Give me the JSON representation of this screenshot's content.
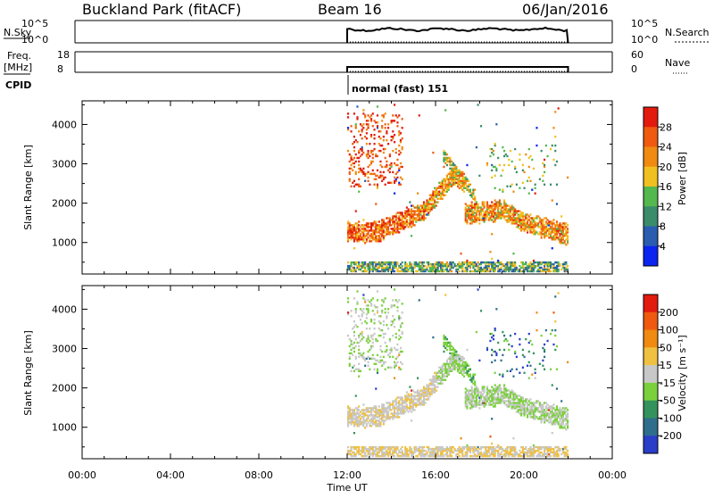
{
  "header": {
    "station": "Buckland Park (fitACF)",
    "beam": "Beam 16",
    "date": "06/Jan/2016"
  },
  "sidebar": {
    "nsky_label": "N.Sky",
    "freq_label": "Freq.",
    "freq_unit": "[MHz]",
    "cpid_label": "CPID",
    "nsearch_label": "N.Search",
    "nave_label": "Nave"
  },
  "noise_panel": {
    "left_ticks": [
      "10^5",
      "10^0"
    ],
    "right_ticks": [
      "10^5",
      "10^0"
    ]
  },
  "freq_panel": {
    "left_ticks": [
      "18",
      "8"
    ],
    "right_ticks": [
      "60",
      "0"
    ]
  },
  "cpid_text": "normal (fast) 151",
  "chart_data": [
    {
      "type": "heatmap",
      "name": "Power",
      "xlabel": "Time UT",
      "ylabel": "Slant Range [km]",
      "xlim": [
        0,
        24
      ],
      "ylim": [
        200,
        4600
      ],
      "x_ticks": [
        "00:00",
        "04:00",
        "08:00",
        "12:00",
        "16:00",
        "20:00",
        "00:00"
      ],
      "y_ticks": [
        "1000",
        "2000",
        "3000",
        "4000"
      ],
      "colorbar": {
        "label": "Power [dB]",
        "ticks": [
          "4",
          "8",
          "12",
          "16",
          "20",
          "24",
          "28"
        ],
        "colors": [
          "#0b24f0",
          "#2a5db0",
          "#3a8c6a",
          "#54b84e",
          "#f0c020",
          "#f08a10",
          "#ef5a10",
          "#e21b0e"
        ]
      },
      "data_coverage": [
        12.0,
        22.0
      ]
    },
    {
      "type": "heatmap",
      "name": "Velocity",
      "xlabel": "Time UT",
      "ylabel": "Slant Range [km]",
      "xlim": [
        0,
        24
      ],
      "ylim": [
        200,
        4600
      ],
      "x_ticks": [
        "00:00",
        "04:00",
        "08:00",
        "12:00",
        "16:00",
        "20:00",
        "00:00"
      ],
      "y_ticks": [
        "1000",
        "2000",
        "3000",
        "4000"
      ],
      "colorbar": {
        "label": "Velocity [m s⁻¹]",
        "ticks": [
          "200",
          "100",
          "50",
          "15",
          "-15",
          "-50",
          "-100",
          "-200"
        ],
        "colors": [
          "#2a3ec8",
          "#2f6d8c",
          "#34935c",
          "#7bd13c",
          "#c8c8c8",
          "#f0c040",
          "#f08a10",
          "#ef5a10",
          "#e21b0e"
        ]
      },
      "data_coverage": [
        12.0,
        22.0
      ]
    }
  ]
}
